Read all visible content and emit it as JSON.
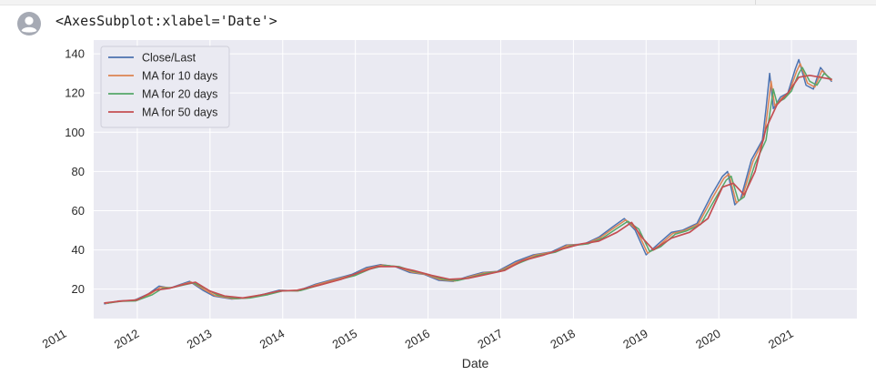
{
  "output": {
    "repr": "<AxesSubplot:xlabel='Date'>"
  },
  "icons": {
    "avatar": "user-avatar-icon"
  },
  "colors": {
    "plot_background": "#eaeaf2",
    "grid": "#ffffff",
    "close": "#4c72b0",
    "ma10": "#dd8452",
    "ma20": "#55a868",
    "ma50": "#c44e52"
  },
  "chart_data": {
    "type": "line",
    "title": "",
    "xlabel": "Date",
    "ylabel": "",
    "xlim": [
      2011.4,
      2021.9
    ],
    "ylim": [
      5,
      147
    ],
    "grid": true,
    "legend_position": "top-left",
    "x_ticks": [
      "2011",
      "2012",
      "2013",
      "2014",
      "2015",
      "2016",
      "2017",
      "2018",
      "2019",
      "2020",
      "2021"
    ],
    "y_ticks": [
      20,
      40,
      60,
      80,
      100,
      120,
      140
    ],
    "series": [
      {
        "name": "Close/Last",
        "color": "#4c72b0",
        "points": [
          [
            2011.55,
            12.5
          ],
          [
            2011.75,
            14.0
          ],
          [
            2011.95,
            14.2
          ],
          [
            2012.15,
            17.5
          ],
          [
            2012.3,
            21.5
          ],
          [
            2012.45,
            20.5
          ],
          [
            2012.6,
            22.5
          ],
          [
            2012.72,
            24.0
          ],
          [
            2012.9,
            19.5
          ],
          [
            2013.05,
            16.5
          ],
          [
            2013.3,
            15.0
          ],
          [
            2013.5,
            15.5
          ],
          [
            2013.75,
            17.5
          ],
          [
            2013.95,
            19.5
          ],
          [
            2014.2,
            19.0
          ],
          [
            2014.45,
            22.5
          ],
          [
            2014.7,
            25.0
          ],
          [
            2014.95,
            27.5
          ],
          [
            2015.15,
            31.0
          ],
          [
            2015.35,
            32.5
          ],
          [
            2015.55,
            31.5
          ],
          [
            2015.75,
            28.5
          ],
          [
            2015.95,
            27.5
          ],
          [
            2016.15,
            24.5
          ],
          [
            2016.35,
            24.0
          ],
          [
            2016.55,
            26.5
          ],
          [
            2016.75,
            28.5
          ],
          [
            2016.95,
            29.0
          ],
          [
            2017.2,
            34.0
          ],
          [
            2017.45,
            37.5
          ],
          [
            2017.7,
            39.0
          ],
          [
            2017.9,
            42.5
          ],
          [
            2018.15,
            43.0
          ],
          [
            2018.35,
            46.5
          ],
          [
            2018.55,
            52.0
          ],
          [
            2018.7,
            56.0
          ],
          [
            2018.85,
            50.0
          ],
          [
            2019.0,
            37.5
          ],
          [
            2019.15,
            42.5
          ],
          [
            2019.35,
            49.0
          ],
          [
            2019.5,
            50.0
          ],
          [
            2019.7,
            53.5
          ],
          [
            2019.9,
            68.0
          ],
          [
            2020.05,
            77.5
          ],
          [
            2020.12,
            80.0
          ],
          [
            2020.22,
            63.0
          ],
          [
            2020.3,
            66.0
          ],
          [
            2020.45,
            86.0
          ],
          [
            2020.6,
            96.0
          ],
          [
            2020.65,
            112.0
          ],
          [
            2020.7,
            130.0
          ],
          [
            2020.75,
            112.0
          ],
          [
            2020.85,
            118.0
          ],
          [
            2020.95,
            120.0
          ],
          [
            2021.05,
            132.0
          ],
          [
            2021.1,
            137.0
          ],
          [
            2021.2,
            124.0
          ],
          [
            2021.3,
            122.0
          ],
          [
            2021.4,
            133.0
          ],
          [
            2021.55,
            126.0
          ]
        ]
      },
      {
        "name": "MA for 10 days",
        "color": "#dd8452",
        "points": [
          [
            2011.57,
            12.7
          ],
          [
            2011.75,
            13.9
          ],
          [
            2011.95,
            14.1
          ],
          [
            2012.17,
            17.3
          ],
          [
            2012.32,
            21.0
          ],
          [
            2012.47,
            20.7
          ],
          [
            2012.62,
            22.4
          ],
          [
            2012.74,
            23.6
          ],
          [
            2012.92,
            19.8
          ],
          [
            2013.07,
            16.7
          ],
          [
            2013.32,
            15.1
          ],
          [
            2013.52,
            15.5
          ],
          [
            2013.77,
            17.4
          ],
          [
            2013.97,
            19.3
          ],
          [
            2014.22,
            19.1
          ],
          [
            2014.47,
            22.3
          ],
          [
            2014.72,
            24.8
          ],
          [
            2014.97,
            27.3
          ],
          [
            2015.17,
            30.6
          ],
          [
            2015.37,
            32.3
          ],
          [
            2015.57,
            31.5
          ],
          [
            2015.77,
            28.8
          ],
          [
            2015.97,
            27.5
          ],
          [
            2016.17,
            24.8
          ],
          [
            2016.37,
            24.1
          ],
          [
            2016.57,
            26.3
          ],
          [
            2016.77,
            28.3
          ],
          [
            2016.97,
            29.0
          ],
          [
            2017.22,
            33.6
          ],
          [
            2017.47,
            37.3
          ],
          [
            2017.72,
            38.9
          ],
          [
            2017.92,
            42.3
          ],
          [
            2018.17,
            43.0
          ],
          [
            2018.37,
            46.3
          ],
          [
            2018.57,
            51.5
          ],
          [
            2018.72,
            55.3
          ],
          [
            2018.87,
            50.3
          ],
          [
            2019.02,
            38.3
          ],
          [
            2019.17,
            42.0
          ],
          [
            2019.37,
            48.5
          ],
          [
            2019.52,
            49.8
          ],
          [
            2019.72,
            53.3
          ],
          [
            2019.92,
            67.0
          ],
          [
            2020.07,
            76.5
          ],
          [
            2020.14,
            78.8
          ],
          [
            2020.24,
            64.0
          ],
          [
            2020.32,
            66.5
          ],
          [
            2020.47,
            85.0
          ],
          [
            2020.62,
            96.5
          ],
          [
            2020.67,
            110.5
          ],
          [
            2020.72,
            126.0
          ],
          [
            2020.77,
            113.5
          ],
          [
            2020.87,
            117.5
          ],
          [
            2020.97,
            120.5
          ],
          [
            2021.07,
            131.0
          ],
          [
            2021.12,
            135.0
          ],
          [
            2021.22,
            125.0
          ],
          [
            2021.32,
            123.0
          ],
          [
            2021.42,
            131.5
          ],
          [
            2021.55,
            126.5
          ]
        ]
      },
      {
        "name": "MA for 20 days",
        "color": "#55a868",
        "points": [
          [
            2011.6,
            12.9
          ],
          [
            2011.78,
            13.8
          ],
          [
            2011.98,
            14.0
          ],
          [
            2012.2,
            17.0
          ],
          [
            2012.35,
            20.5
          ],
          [
            2012.5,
            20.9
          ],
          [
            2012.65,
            22.2
          ],
          [
            2012.77,
            23.2
          ],
          [
            2012.95,
            20.1
          ],
          [
            2013.1,
            17.0
          ],
          [
            2013.35,
            15.2
          ],
          [
            2013.55,
            15.5
          ],
          [
            2013.8,
            17.2
          ],
          [
            2014.0,
            19.1
          ],
          [
            2014.25,
            19.3
          ],
          [
            2014.5,
            22.0
          ],
          [
            2014.75,
            24.6
          ],
          [
            2015.0,
            27.0
          ],
          [
            2015.2,
            30.2
          ],
          [
            2015.4,
            32.0
          ],
          [
            2015.6,
            31.5
          ],
          [
            2015.8,
            29.1
          ],
          [
            2016.0,
            27.5
          ],
          [
            2016.2,
            25.1
          ],
          [
            2016.4,
            24.3
          ],
          [
            2016.6,
            26.1
          ],
          [
            2016.8,
            28.1
          ],
          [
            2017.0,
            29.1
          ],
          [
            2017.25,
            33.2
          ],
          [
            2017.5,
            37.0
          ],
          [
            2017.75,
            38.8
          ],
          [
            2017.95,
            42.0
          ],
          [
            2018.2,
            43.1
          ],
          [
            2018.4,
            46.0
          ],
          [
            2018.6,
            51.0
          ],
          [
            2018.75,
            54.6
          ],
          [
            2018.9,
            50.6
          ],
          [
            2019.05,
            39.1
          ],
          [
            2019.2,
            41.6
          ],
          [
            2019.4,
            48.0
          ],
          [
            2019.55,
            49.6
          ],
          [
            2019.75,
            53.0
          ],
          [
            2019.95,
            66.0
          ],
          [
            2020.1,
            75.5
          ],
          [
            2020.17,
            77.6
          ],
          [
            2020.27,
            65.0
          ],
          [
            2020.35,
            67.0
          ],
          [
            2020.5,
            84.0
          ],
          [
            2020.65,
            96.0
          ],
          [
            2020.7,
            109.0
          ],
          [
            2020.75,
            122.0
          ],
          [
            2020.8,
            115.0
          ],
          [
            2020.9,
            117.0
          ],
          [
            2021.0,
            121.0
          ],
          [
            2021.1,
            130.0
          ],
          [
            2021.15,
            133.0
          ],
          [
            2021.25,
            126.0
          ],
          [
            2021.35,
            124.0
          ],
          [
            2021.45,
            130.0
          ],
          [
            2021.55,
            127.0
          ]
        ]
      },
      {
        "name": "MA for 50 days",
        "color": "#c44e52",
        "points": [
          [
            2011.55,
            13.0
          ],
          [
            2011.8,
            14.0
          ],
          [
            2012.0,
            14.5
          ],
          [
            2012.25,
            19.5
          ],
          [
            2012.45,
            20.5
          ],
          [
            2012.65,
            22.5
          ],
          [
            2012.8,
            23.5
          ],
          [
            2013.0,
            19.0
          ],
          [
            2013.2,
            16.5
          ],
          [
            2013.45,
            15.5
          ],
          [
            2013.7,
            17.0
          ],
          [
            2013.95,
            19.0
          ],
          [
            2014.2,
            19.5
          ],
          [
            2014.5,
            22.0
          ],
          [
            2014.8,
            25.0
          ],
          [
            2015.05,
            28.5
          ],
          [
            2015.3,
            31.5
          ],
          [
            2015.55,
            31.5
          ],
          [
            2015.8,
            29.5
          ],
          [
            2016.05,
            27.0
          ],
          [
            2016.3,
            25.0
          ],
          [
            2016.55,
            25.5
          ],
          [
            2016.8,
            27.5
          ],
          [
            2017.05,
            29.5
          ],
          [
            2017.3,
            34.5
          ],
          [
            2017.6,
            37.5
          ],
          [
            2017.85,
            40.5
          ],
          [
            2018.1,
            43.0
          ],
          [
            2018.35,
            44.5
          ],
          [
            2018.6,
            49.0
          ],
          [
            2018.8,
            54.0
          ],
          [
            2018.95,
            46.0
          ],
          [
            2019.1,
            40.0
          ],
          [
            2019.35,
            46.0
          ],
          [
            2019.6,
            49.0
          ],
          [
            2019.85,
            56.0
          ],
          [
            2020.05,
            72.0
          ],
          [
            2020.2,
            74.0
          ],
          [
            2020.35,
            68.0
          ],
          [
            2020.5,
            80.0
          ],
          [
            2020.65,
            102.0
          ],
          [
            2020.8,
            114.0
          ],
          [
            2020.95,
            120.0
          ],
          [
            2021.1,
            128.0
          ],
          [
            2021.25,
            129.0
          ],
          [
            2021.4,
            128.0
          ],
          [
            2021.55,
            127.0
          ]
        ]
      }
    ]
  }
}
